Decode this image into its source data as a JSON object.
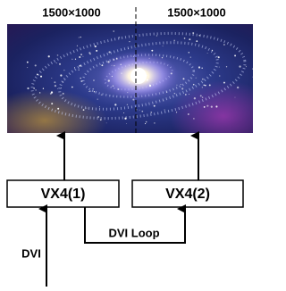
{
  "screens": [
    {
      "resolution": "1500×1000"
    },
    {
      "resolution": "1500×1000"
    }
  ],
  "devices": [
    {
      "label": "VX4(1)"
    },
    {
      "label": "VX4(2)"
    }
  ],
  "links": {
    "loop": "DVI Loop",
    "input": "DVI"
  }
}
